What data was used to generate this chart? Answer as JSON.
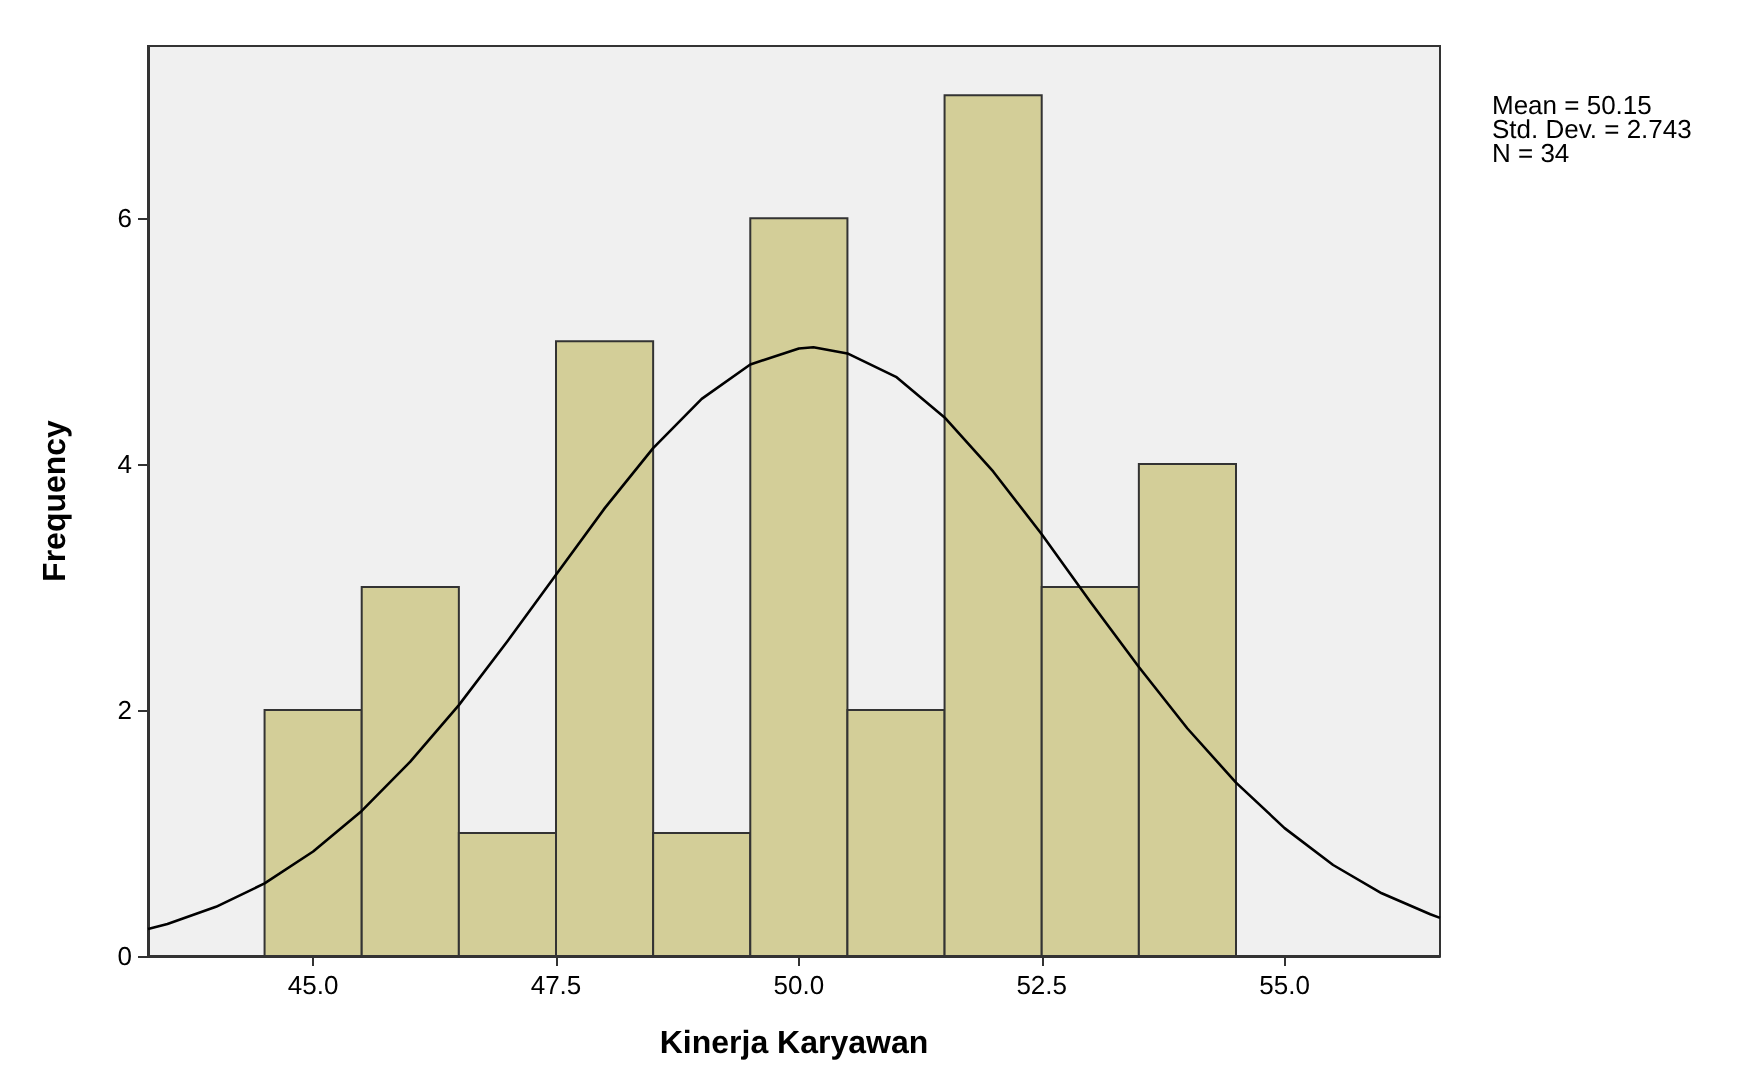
{
  "chart_data": {
    "type": "histogram",
    "xlabel": "Kinerja Karyawan",
    "ylabel": "Frequency",
    "bins": [
      44.5,
      45.5,
      46.5,
      47.5,
      48.5,
      49.5,
      50.5,
      51.5,
      52.5,
      53.5,
      54.5
    ],
    "values": [
      2,
      3,
      1,
      5,
      1,
      6,
      2,
      7,
      3,
      4
    ],
    "color": "#d3ce98",
    "series": [
      {
        "type": "line",
        "color": "#000000",
        "x": [
          43.3,
          43.5,
          44,
          44.5,
          45,
          45.5,
          46,
          46.5,
          47,
          47.5,
          48,
          48.5,
          49,
          49.5,
          50,
          50.15,
          50.5,
          51,
          51.5,
          52,
          52.5,
          53,
          53.5,
          54,
          54.5,
          55,
          55.5,
          56,
          56.5,
          56.6
        ],
        "values": [
          0.22,
          0.26,
          0.4,
          0.59,
          0.85,
          1.18,
          1.58,
          2.04,
          2.56,
          3.1,
          3.64,
          4.13,
          4.53,
          4.81,
          4.94,
          4.95,
          4.9,
          4.71,
          4.38,
          3.94,
          3.43,
          2.88,
          2.35,
          1.85,
          1.41,
          1.04,
          0.74,
          0.51,
          0.34,
          0.31
        ]
      }
    ],
    "marker": "none",
    "line_style": "solid",
    "xlim": [
      43.3,
      56.6
    ],
    "ylim": [
      0,
      7.4
    ],
    "xticks": [
      {
        "value": 45,
        "label": "45.0"
      },
      {
        "value": 47.5,
        "label": "47.5"
      },
      {
        "value": 50,
        "label": "50.0"
      },
      {
        "value": 52.5,
        "label": "52.5"
      },
      {
        "value": 55,
        "label": "55.0"
      }
    ],
    "yticks": [
      0,
      2,
      4,
      6
    ],
    "grid": false,
    "annotations": [
      "Mean = 50.15",
      "Std. Dev. = 2.743",
      "N = 34"
    ]
  }
}
